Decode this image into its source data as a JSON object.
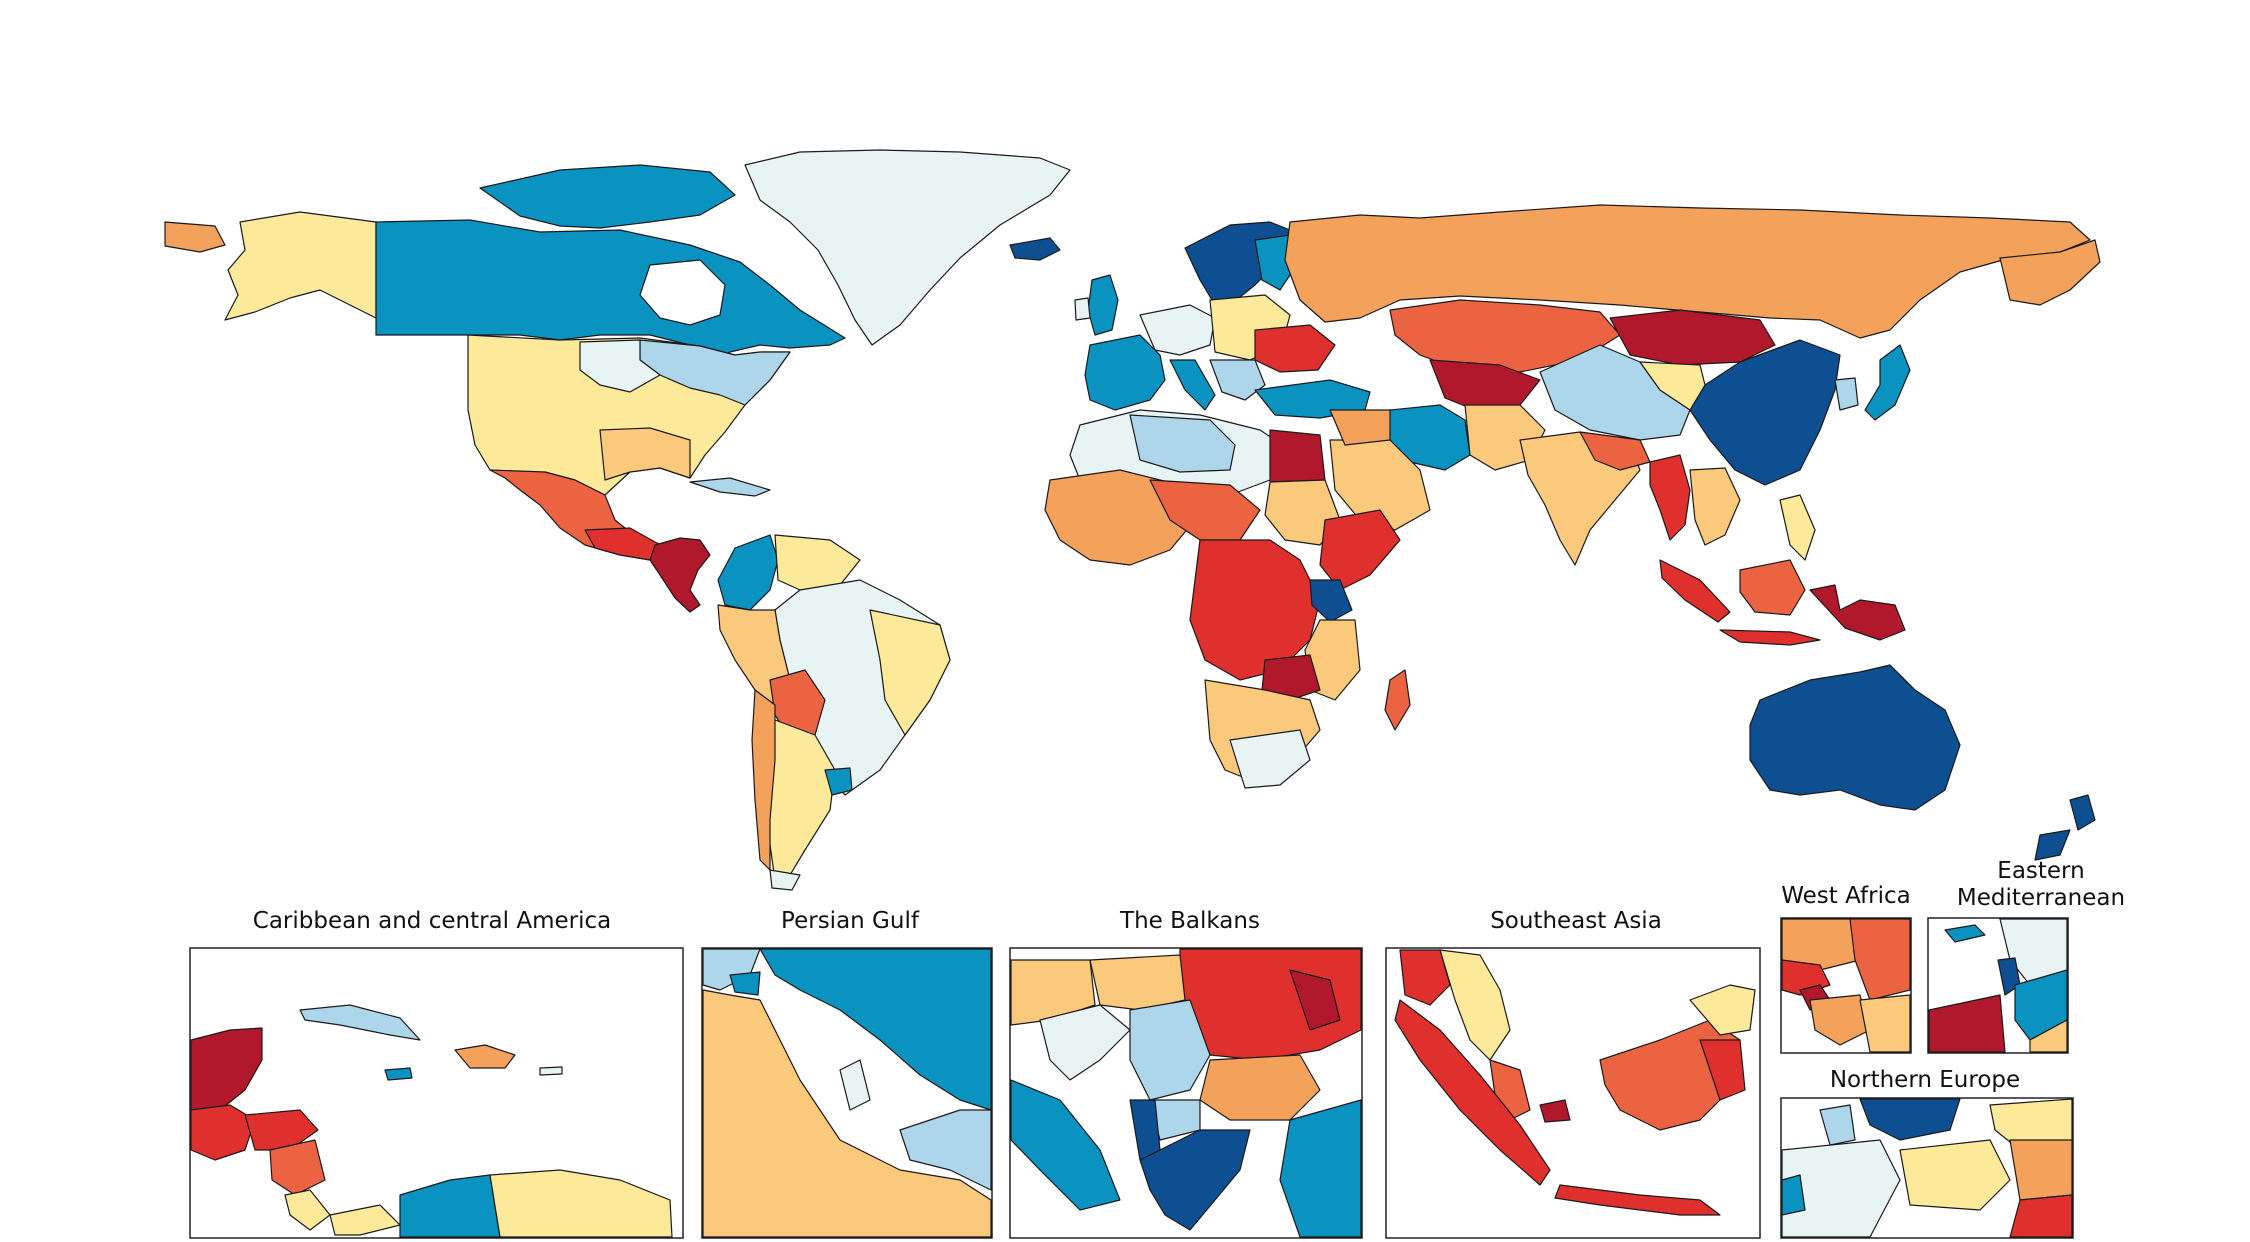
{
  "palette": {
    "darkred": "#b2182b",
    "red": "#e0302e",
    "redorange": "#ec6342",
    "orange": "#f4a15b",
    "lightorange": "#fbc97c",
    "yellow": "#fde99a",
    "pale": "#e8f4f3",
    "lightblue": "#aed6ea",
    "blue": "#0a92c1",
    "navy": "#0e4f91",
    "water": "#ffffff",
    "border": "#1a1a1a"
  },
  "insets": [
    {
      "id": "caribbean",
      "title": "Caribbean and central America"
    },
    {
      "id": "persian-gulf",
      "title": "Persian Gulf"
    },
    {
      "id": "balkans",
      "title": "The Balkans"
    },
    {
      "id": "southeast-asia",
      "title": "Southeast Asia"
    },
    {
      "id": "west-africa",
      "title": "West Africa"
    },
    {
      "id": "eastern-med",
      "title_line1": "Eastern",
      "title_line2": "Mediterranean"
    },
    {
      "id": "northern-europe",
      "title": "Northern Europe"
    }
  ]
}
